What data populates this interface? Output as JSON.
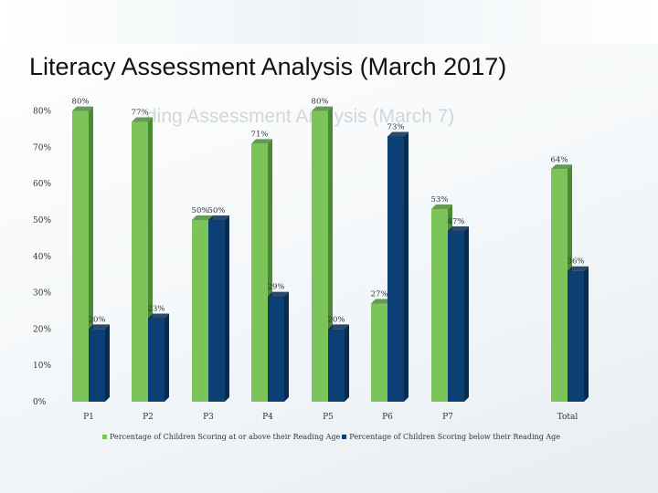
{
  "slide": {
    "title": "Literacy Assessment Analysis (March 2017)",
    "ghost_title": "ding Assessment Analysis (March 7)"
  },
  "colors": {
    "green": "#7cc45a",
    "green_side": "#4a8a34",
    "navy": "#0c3f73",
    "navy_side": "#082b50"
  },
  "chart_data": {
    "type": "bar",
    "categories": [
      "P1",
      "P2",
      "P3",
      "P4",
      "P5",
      "P6",
      "P7",
      "Total"
    ],
    "series": [
      {
        "name": "Percentage of Children Scoring at or above their Reading Age",
        "values": [
          80,
          77,
          50,
          71,
          80,
          27,
          53,
          64
        ]
      },
      {
        "name": "Percentage of Children Scoring below their Reading Age",
        "values": [
          20,
          23,
          50,
          29,
          20,
          73,
          47,
          36
        ]
      }
    ],
    "ylim": [
      0,
      100
    ],
    "y_ticks": [
      "0%",
      "10%",
      "20%",
      "30%",
      "40%",
      "50%",
      "60%",
      "70%",
      "80%"
    ],
    "value_labels": [
      [
        "80%",
        "77%",
        "50%",
        "71%",
        "80%",
        "27%",
        "53%",
        "64%"
      ],
      [
        "20%",
        "23%",
        "50%",
        "29%",
        "20%",
        "73%",
        "47%",
        "36%"
      ]
    ],
    "grid": false,
    "legend": "bottom"
  }
}
